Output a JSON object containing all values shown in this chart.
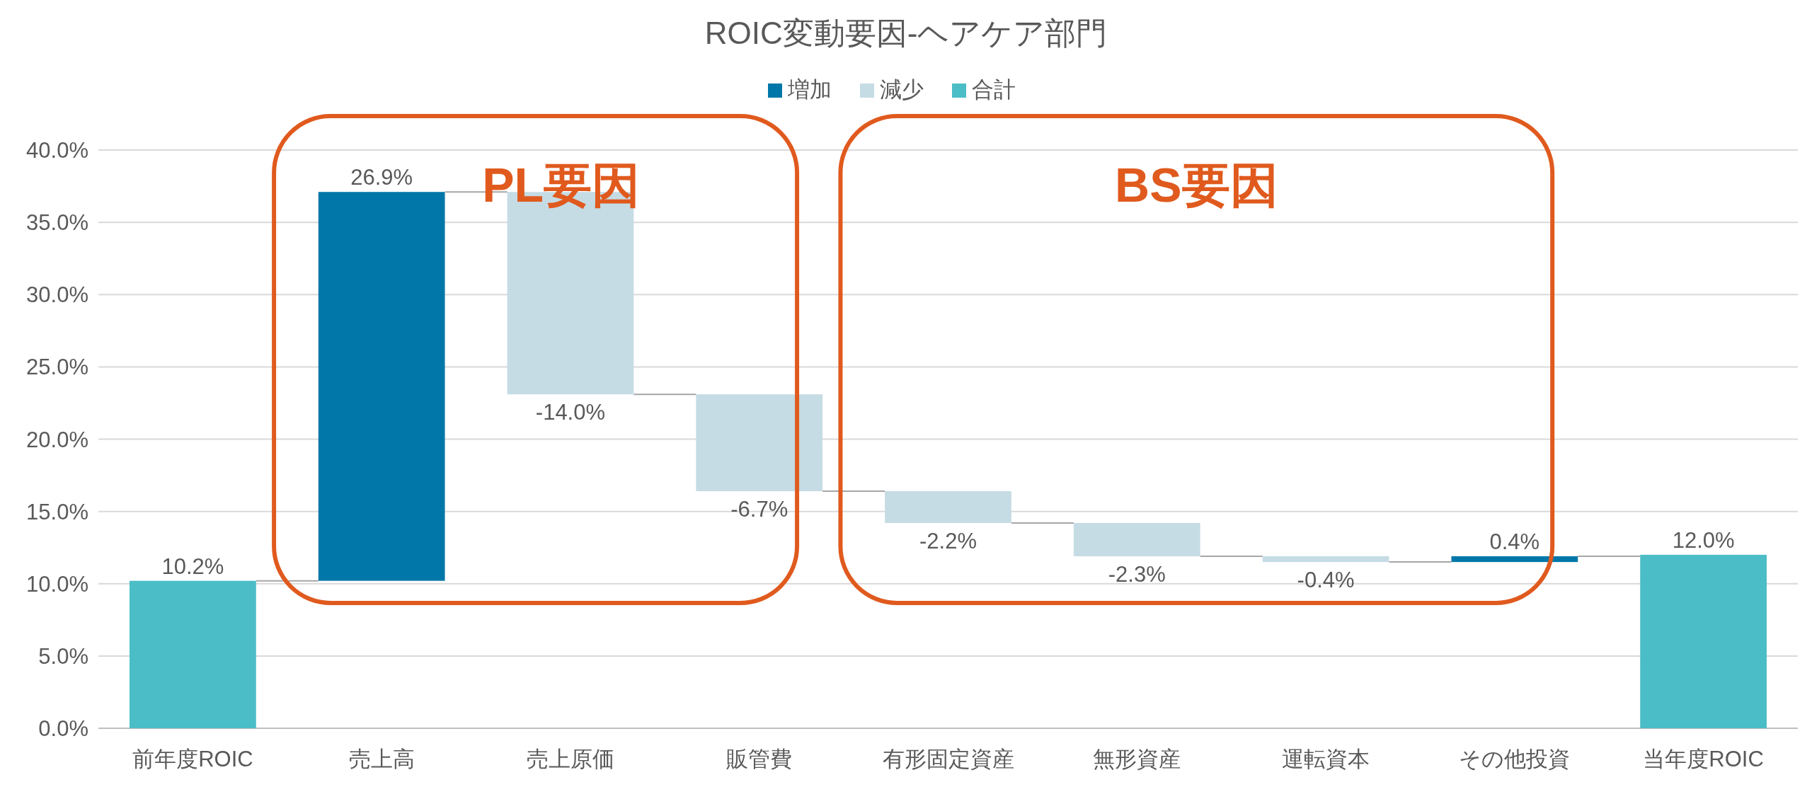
{
  "chart_data": {
    "type": "bar",
    "title": "ROIC変動要因-ヘアケア部門",
    "categories": [
      "前年度ROIC",
      "売上高",
      "売上原価",
      "販管費",
      "有形固定資産",
      "無形資産",
      "運転資本",
      "その他投資",
      "当年度ROIC"
    ],
    "series": [
      {
        "name": "増加",
        "color": "#0077a8",
        "values": [
          null,
          26.9,
          null,
          null,
          null,
          null,
          null,
          0.4,
          null
        ],
        "base": [
          null,
          10.2,
          null,
          null,
          null,
          null,
          null,
          11.5,
          null
        ],
        "value_labels": [
          null,
          "26.9%",
          null,
          null,
          null,
          null,
          null,
          "0.4%",
          null
        ]
      },
      {
        "name": "減少",
        "color": "#c5dce5",
        "values": [
          null,
          null,
          -14.0,
          -6.7,
          -2.2,
          -2.3,
          -0.4,
          null,
          null
        ],
        "base": [
          null,
          null,
          37.1,
          23.1,
          16.4,
          14.2,
          11.9,
          null,
          null
        ],
        "value_labels": [
          null,
          null,
          "-14.0%",
          "-6.7%",
          "-2.2%",
          "-2.3%",
          "-0.4%",
          null,
          null
        ]
      },
      {
        "name": "合計",
        "color": "#4bbdc6",
        "values": [
          10.2,
          null,
          null,
          null,
          null,
          null,
          null,
          null,
          12.0
        ],
        "value_labels": [
          "10.2%",
          null,
          null,
          null,
          null,
          null,
          null,
          null,
          "12.0%"
        ]
      }
    ],
    "ylim": [
      0,
      40
    ],
    "yticks": [
      {
        "value": 0,
        "label": "0.0%"
      },
      {
        "value": 5,
        "label": "5.0%"
      },
      {
        "value": 10,
        "label": "10.0%"
      },
      {
        "value": 15,
        "label": "15.0%"
      },
      {
        "value": 20,
        "label": "20.0%"
      },
      {
        "value": 25,
        "label": "25.0%"
      },
      {
        "value": 30,
        "label": "30.0%"
      },
      {
        "value": 35,
        "label": "35.0%"
      },
      {
        "value": 40,
        "label": "40.0%"
      }
    ],
    "grid": "y",
    "legend": "top",
    "annotations": [
      "PL要因",
      "BS要因"
    ]
  }
}
